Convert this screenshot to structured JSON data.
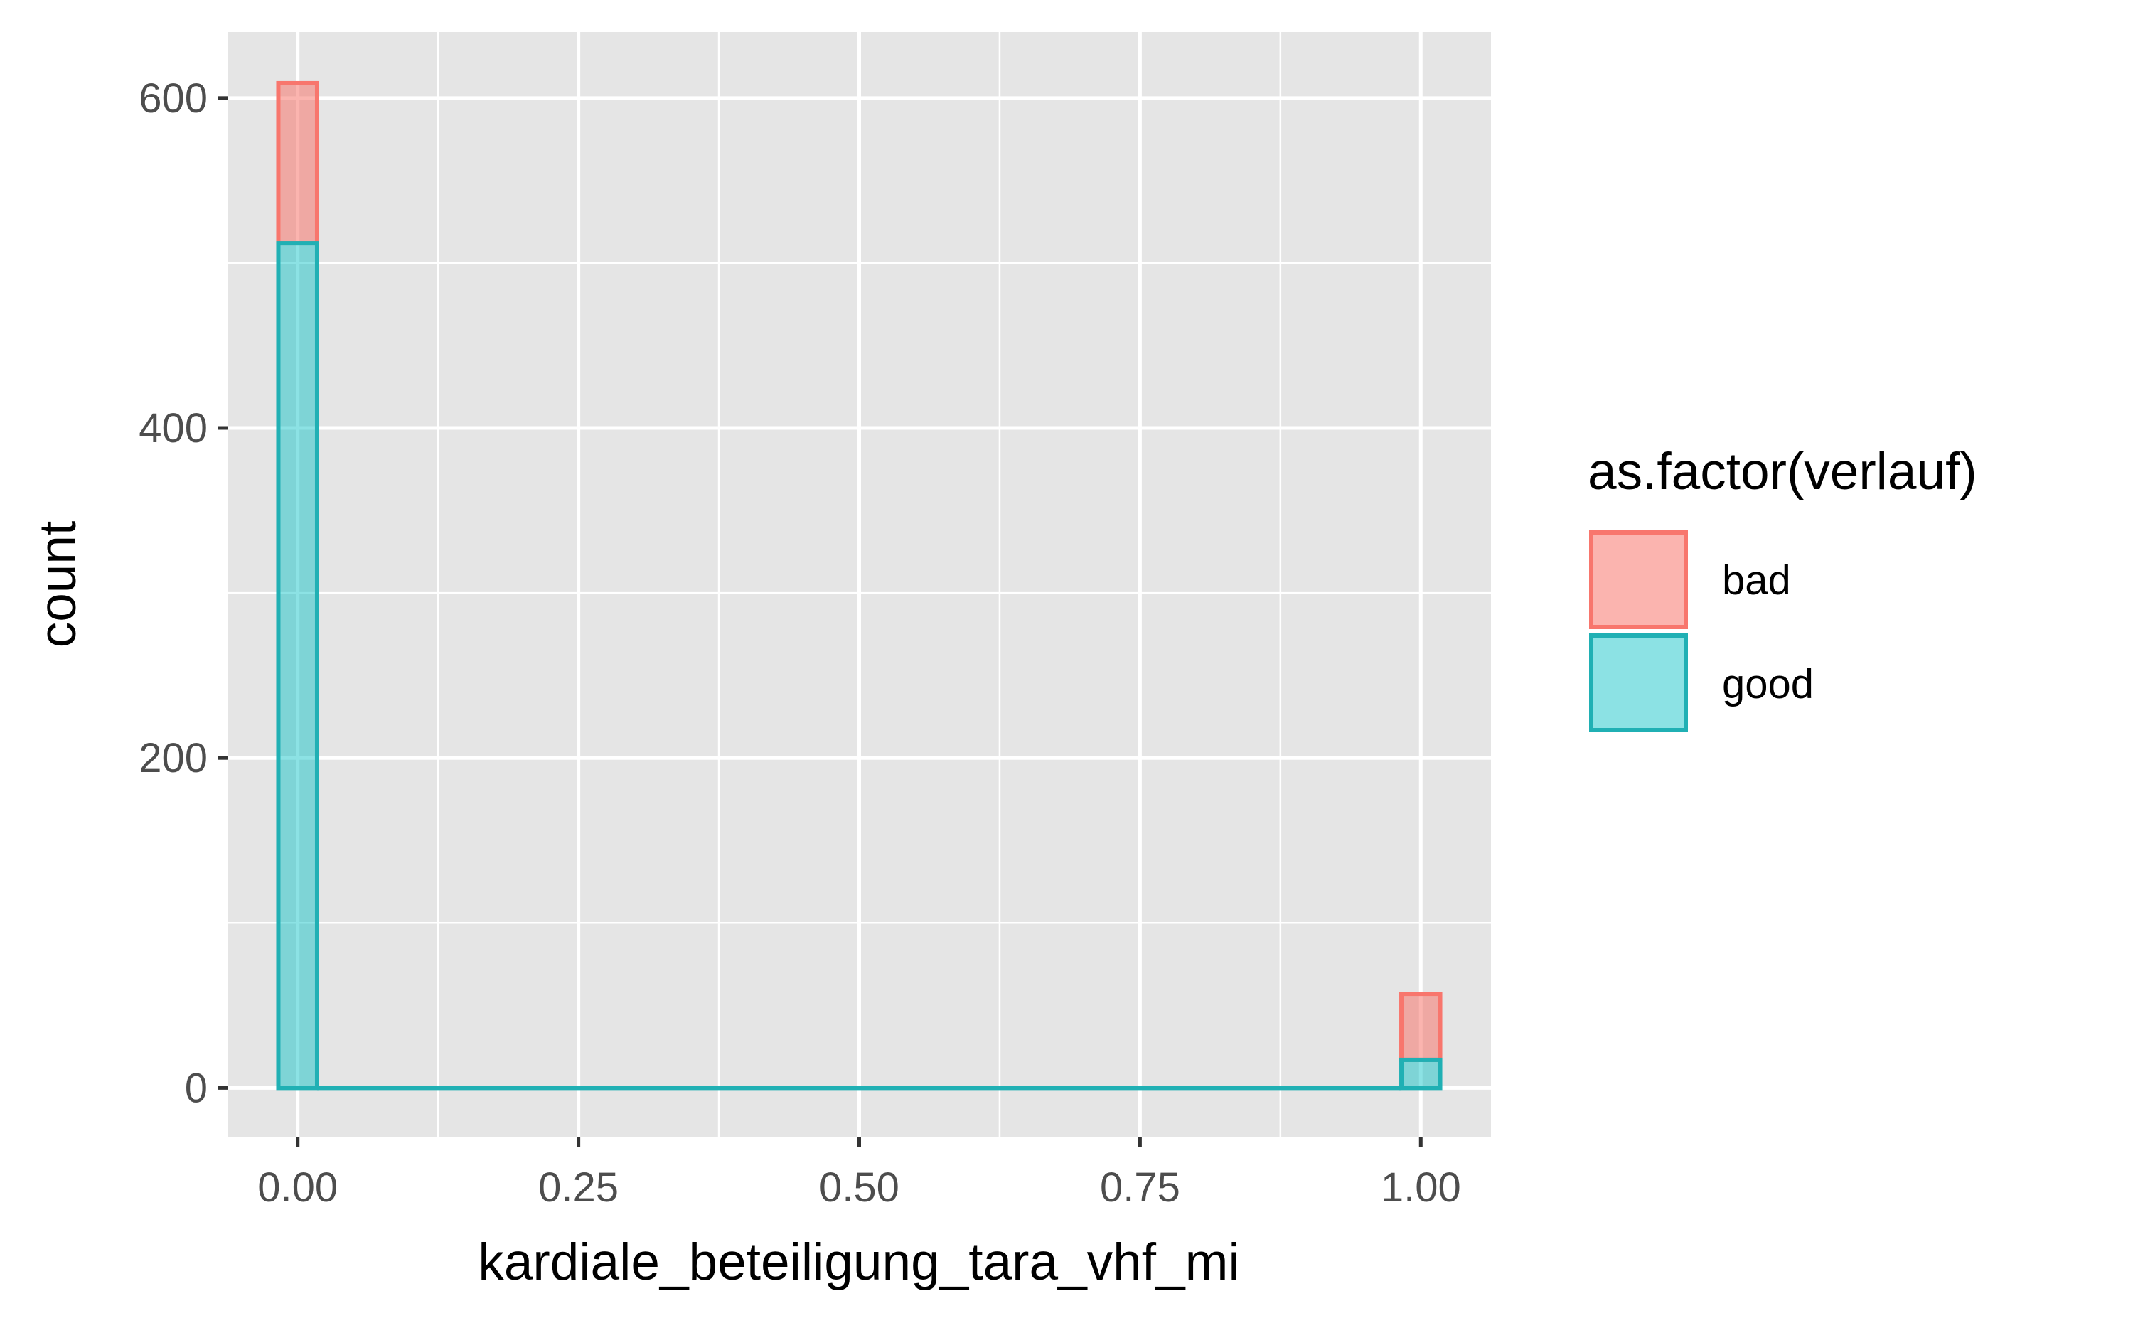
{
  "chart_data": {
    "type": "bar",
    "subtype": "stacked-histogram",
    "xlabel": "kardiale_beteiligung_tara_vhf_mi",
    "ylabel": "count",
    "xlim": [
      -0.0625,
      1.0625
    ],
    "ylim": [
      -30,
      640
    ],
    "x_ticks": [
      0.0,
      0.25,
      0.5,
      0.75,
      1.0
    ],
    "x_tick_labels": [
      "0.00",
      "0.25",
      "0.50",
      "0.75",
      "1.00"
    ],
    "y_ticks": [
      0,
      200,
      400,
      600
    ],
    "y_tick_labels": [
      "0",
      "200",
      "400",
      "600"
    ],
    "bin_width": 0.0345,
    "bins": [
      0.0,
      1.0
    ],
    "series": [
      {
        "name": "bad",
        "color": "#F8766D",
        "values": [
          97,
          40
        ]
      },
      {
        "name": "good",
        "color": "#00BFC4",
        "values": [
          512,
          17
        ]
      }
    ],
    "stacked": true,
    "grid": true,
    "legend": {
      "title": "as.factor(verlauf)",
      "position": "right",
      "items": [
        "bad",
        "good"
      ]
    }
  }
}
